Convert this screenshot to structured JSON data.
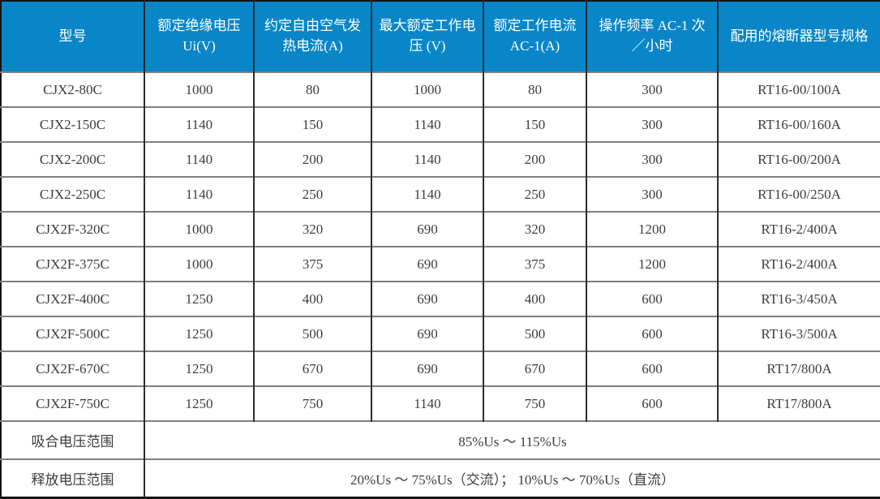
{
  "colors": {
    "header_background": "#0986c8",
    "header_text": "#ffffff",
    "body_text": "#3d3d3d",
    "vertical_grid": "#2d2d2d",
    "horizontal_grid": "#7f7f7f",
    "outer_border": "#141414",
    "row_background": "#ffffff"
  },
  "table": {
    "columns": [
      {
        "label": "型号"
      },
      {
        "label": "额定绝缘电压 Ui(V)"
      },
      {
        "label": "约定自由空气发热电流(A)"
      },
      {
        "label": "最大额定工作电压 (V)"
      },
      {
        "label": "额定工作电流 AC-1(A)"
      },
      {
        "label": "操作频率 AC-1 次／小时"
      },
      {
        "label": "配用的熔断器型号规格"
      }
    ],
    "rows": [
      [
        "CJX2-80C",
        "1000",
        "80",
        "1000",
        "80",
        "300",
        "RT16-00/100A"
      ],
      [
        "CJX2-150C",
        "1140",
        "150",
        "1140",
        "150",
        "300",
        "RT16-00/160A"
      ],
      [
        "CJX2-200C",
        "1140",
        "200",
        "1140",
        "200",
        "300",
        "RT16-00/200A"
      ],
      [
        "CJX2-250C",
        "1140",
        "250",
        "1140",
        "250",
        "300",
        "RT16-00/250A"
      ],
      [
        "CJX2F-320C",
        "1000",
        "320",
        "690",
        "320",
        "1200",
        "RT16-2/400A"
      ],
      [
        "CJX2F-375C",
        "1000",
        "375",
        "690",
        "375",
        "1200",
        "RT16-2/400A"
      ],
      [
        "CJX2F-400C",
        "1250",
        "400",
        "690",
        "400",
        "600",
        "RT16-3/450A"
      ],
      [
        "CJX2F-500C",
        "1250",
        "500",
        "690",
        "500",
        "600",
        "RT16-3/500A"
      ],
      [
        "CJX2F-670C",
        "1250",
        "670",
        "690",
        "670",
        "600",
        "RT17/800A"
      ],
      [
        "CJX2F-750C",
        "1250",
        "750",
        "1140",
        "750",
        "600",
        "RT17/800A"
      ]
    ],
    "footer_rows": [
      {
        "label": "吸合电压范围",
        "value": "85%Us ～ 115%Us"
      },
      {
        "label": "释放电压范围",
        "value": "20%Us ～ 75%Us（交流）； 10%Us ～ 70%Us（直流）"
      }
    ]
  }
}
